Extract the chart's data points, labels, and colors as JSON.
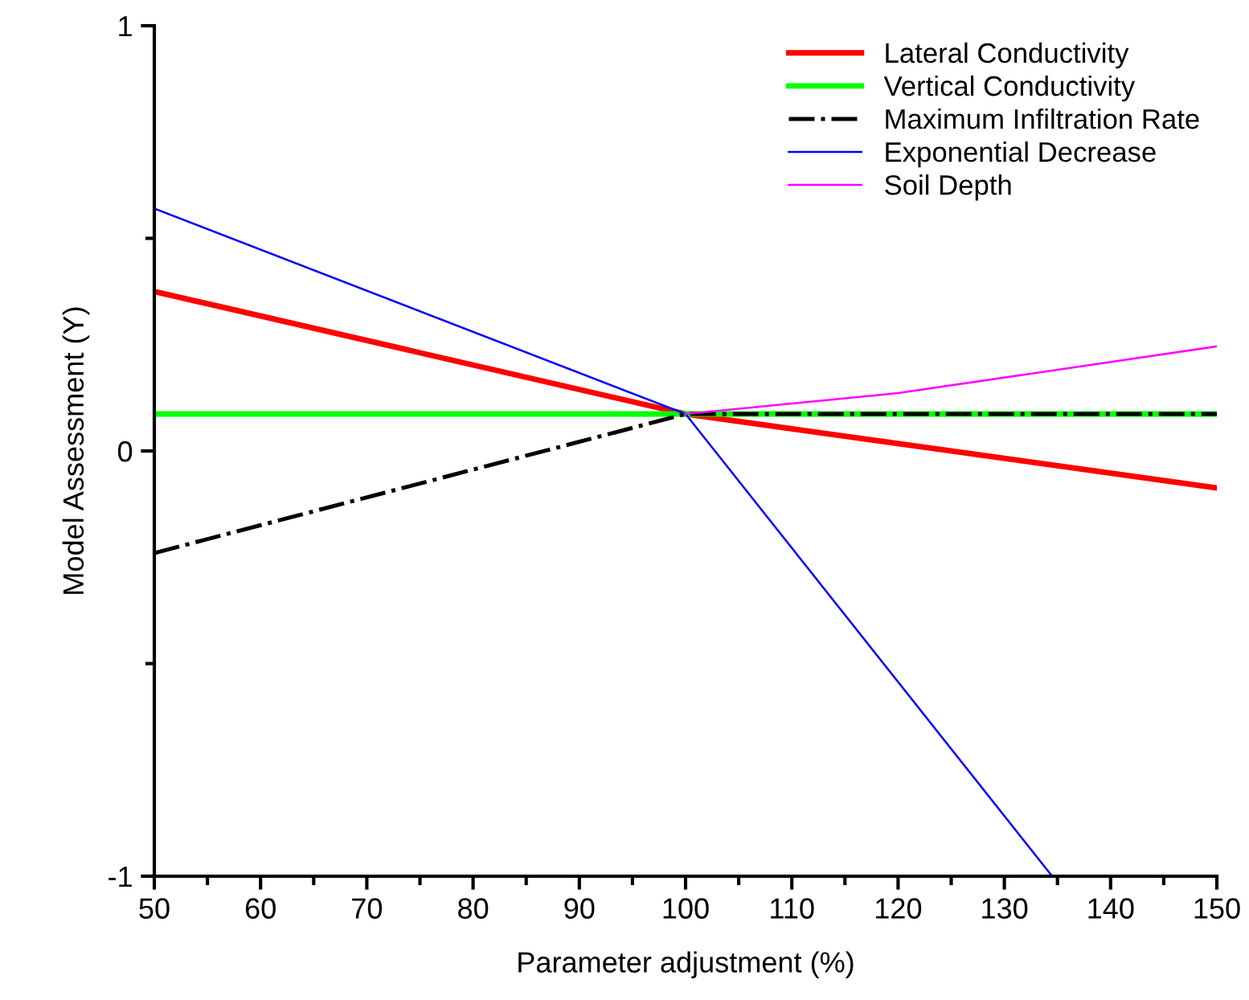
{
  "chart_data": {
    "type": "line",
    "xlabel": "Parameter adjustment (%)",
    "ylabel": "Model Assessment (Y)",
    "xlim": [
      50,
      150
    ],
    "xticks": [
      50,
      {
        "value": 55,
        "label": null
      },
      60,
      {
        "value": 65,
        "label": null
      },
      70,
      {
        "value": 75,
        "label": null
      },
      80,
      {
        "value": 85,
        "label": null
      },
      90,
      {
        "value": 95,
        "label": null
      },
      100,
      {
        "value": 105,
        "label": null
      },
      110,
      {
        "value": 115,
        "label": null
      },
      120,
      {
        "value": 125,
        "label": null
      },
      130,
      {
        "value": 135,
        "label": null
      },
      140,
      {
        "value": 145,
        "label": null
      },
      150
    ],
    "ylim": [
      -1,
      1
    ],
    "yticks": [
      -1,
      {
        "value": -0.5,
        "label": null
      },
      0,
      {
        "value": 0.5,
        "label": null
      },
      1
    ],
    "grid": false,
    "legend": "top right",
    "marker": "none",
    "series": [
      {
        "name": "Lateral Conductivity",
        "color": "#ff0000",
        "x": [
          50,
          100,
          150
        ],
        "values": [
          0.375,
          0.087,
          -0.087
        ],
        "line_style": "solid"
      },
      {
        "name": "Vertical Conductivity",
        "color": "#00ff00",
        "x": [
          50,
          100,
          150
        ],
        "values": [
          0.087,
          0.087,
          0.087
        ],
        "line_style": "solid"
      },
      {
        "name": "Maximum Infiltration Rate",
        "color": "#000000",
        "x": [
          50,
          100,
          150
        ],
        "values": [
          -0.24,
          0.087,
          0.087
        ],
        "line_style": "dashdot"
      },
      {
        "name": "Exponential Decrease",
        "color": "#0000ff",
        "x": [
          50,
          100,
          134.5
        ],
        "values": [
          0.57,
          0.087,
          -1
        ],
        "line_style": "solid"
      },
      {
        "name": "Soil Depth",
        "color": "#ff00ff",
        "x": [
          100,
          120,
          150
        ],
        "values": [
          0.087,
          0.136,
          0.246
        ],
        "line_style": "solid"
      }
    ]
  }
}
